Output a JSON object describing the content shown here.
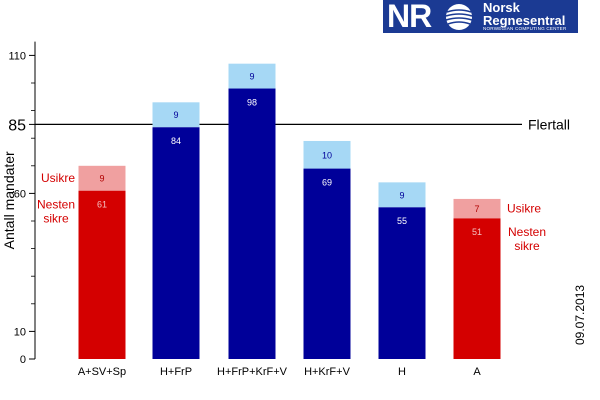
{
  "logo": {
    "mark": "NR",
    "name_line1": "Norsk",
    "name_line2": "Regnesentral",
    "subtitle": "NORWEGIAN COMPUTING CENTER",
    "color": "#1b3a93"
  },
  "date": "09.07.2013",
  "chart_data": {
    "type": "bar",
    "stacked": true,
    "ylabel": "Antall mandater",
    "ylim": [
      0,
      115
    ],
    "yticks_labeled": [
      0,
      10,
      60,
      85,
      110
    ],
    "yticks_minor": [
      20,
      30,
      40,
      50,
      70,
      80,
      90,
      100
    ],
    "categories": [
      "A+SV+Sp",
      "H+FrP",
      "H+FrP+KrF+V",
      "H+KrF+V",
      "H",
      "A"
    ],
    "series": [
      {
        "name": "Nesten sikre",
        "values": [
          61,
          84,
          98,
          69,
          55,
          51
        ]
      },
      {
        "name": "Usikre",
        "values": [
          9,
          9,
          9,
          10,
          9,
          7
        ]
      }
    ],
    "bar_group": [
      "red",
      "blue",
      "blue",
      "blue",
      "blue",
      "red"
    ],
    "colors": {
      "red_base": "#d40000",
      "red_top": "#f0a0a0",
      "blue_base": "#000099",
      "blue_top": "#a6d8f5",
      "red_base_label": "#f3c0c0",
      "blue_base_label": "#ffffff",
      "red_top_label": "#b00000",
      "blue_top_label": "#000099"
    },
    "reference_line": {
      "value": 85,
      "label": "Flertall"
    },
    "annotations": {
      "left_usikre": "Usikre",
      "left_nesten": [
        "Nesten",
        "sikre"
      ],
      "right_usikre": "Usikre",
      "right_nesten": [
        "Nesten",
        "sikre"
      ],
      "annotation_color": "#d40000"
    }
  }
}
